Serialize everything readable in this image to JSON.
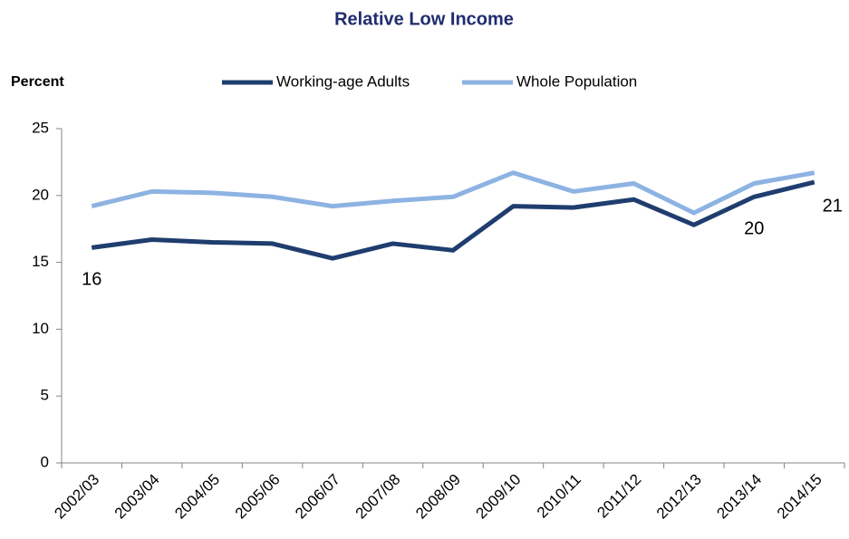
{
  "chart_data": {
    "type": "line",
    "title": "Relative Low Income",
    "y_label": "Percent",
    "categories": [
      "2002/03",
      "2003/04",
      "2004/05",
      "2005/06",
      "2006/07",
      "2007/08",
      "2008/09",
      "2009/10",
      "2010/11",
      "2011/12",
      "2012/13",
      "2013/14",
      "2014/15"
    ],
    "series": [
      {
        "name": "Working-age Adults",
        "color": "#1f3d6e",
        "values": [
          16.1,
          16.7,
          16.5,
          16.4,
          15.3,
          16.4,
          15.9,
          19.2,
          19.1,
          19.7,
          17.8,
          19.9,
          21.0
        ],
        "value_labels": [
          "16",
          null,
          null,
          null,
          null,
          null,
          null,
          null,
          null,
          null,
          null,
          "20",
          "21"
        ]
      },
      {
        "name": "Whole Population",
        "color": "#8db3e2",
        "values": [
          19.2,
          20.3,
          20.2,
          19.9,
          19.2,
          19.6,
          19.9,
          21.7,
          20.3,
          20.9,
          18.7,
          20.9,
          21.7
        ]
      }
    ],
    "ylim": [
      0,
      25
    ],
    "yticks": [
      0,
      5,
      10,
      15,
      20,
      25
    ],
    "grid": false,
    "legend": "top"
  }
}
